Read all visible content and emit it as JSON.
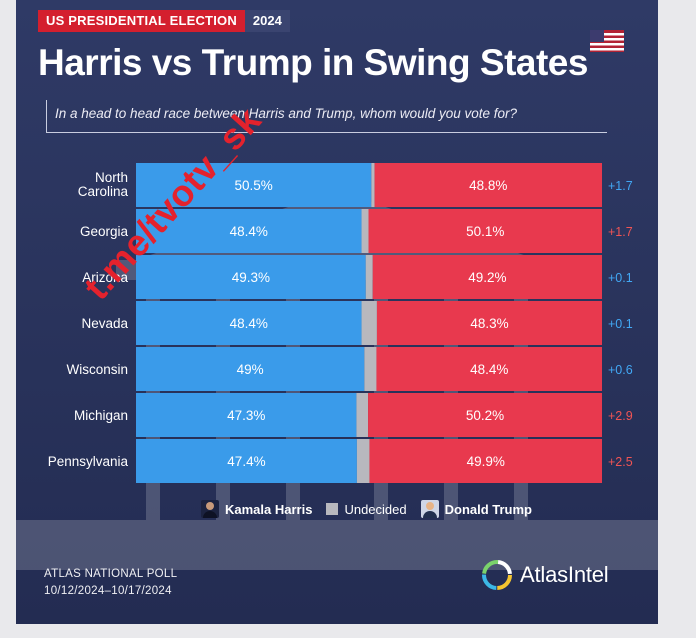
{
  "header": {
    "tag_label": "US PRESIDENTIAL ELECTION",
    "tag_year": "2024"
  },
  "title": "Harris vs Trump in Swing States",
  "subtitle": "In a head to head race between Harris and Trump, whom would you vote for?",
  "colors": {
    "harris": "#3a9bea",
    "trump": "#e8394e",
    "undecided": "#b8b8be",
    "margin_blue": "#42a8f5",
    "margin_red": "#f05454"
  },
  "chart_data": {
    "type": "bar",
    "orientation": "horizontal-stacked",
    "title": "Harris vs Trump in Swing States",
    "categories": [
      "North Carolina",
      "Georgia",
      "Arizona",
      "Nevada",
      "Wisconsin",
      "Michigan",
      "Pennsylvania"
    ],
    "series": [
      {
        "name": "Kamala Harris",
        "values": [
          50.5,
          48.4,
          49.3,
          48.4,
          49,
          47.3,
          47.4
        ],
        "labels": [
          "50.5%",
          "48.4%",
          "49.3%",
          "48.4%",
          "49%",
          "47.3%",
          "47.4%"
        ]
      },
      {
        "name": "Undecided",
        "values": [
          0.7,
          1.5,
          1.5,
          3.3,
          2.6,
          2.5,
          2.7
        ]
      },
      {
        "name": "Donald Trump",
        "values": [
          48.8,
          50.1,
          49.2,
          48.3,
          48.4,
          50.2,
          49.9
        ],
        "labels": [
          "48.8%",
          "50.1%",
          "49.2%",
          "48.3%",
          "48.4%",
          "50.2%",
          "49.9%"
        ]
      }
    ],
    "margins": [
      {
        "text": "+1.7",
        "leader": "harris"
      },
      {
        "text": "+1.7",
        "leader": "trump"
      },
      {
        "text": "+0.1",
        "leader": "harris"
      },
      {
        "text": "+0.1",
        "leader": "harris"
      },
      {
        "text": "+0.6",
        "leader": "harris"
      },
      {
        "text": "+2.9",
        "leader": "trump"
      },
      {
        "text": "+2.5",
        "leader": "trump"
      }
    ],
    "xlim": [
      0,
      100
    ]
  },
  "legend": {
    "harris": "Kamala Harris",
    "undecided": "Undecided",
    "trump": "Donald Trump"
  },
  "source": {
    "line1": "ATLAS NATIONAL POLL",
    "line2": "10/12/2024–10/17/2024"
  },
  "logo": {
    "text": "AtlasIntel",
    "icon": "atlasintel-logo-icon"
  },
  "watermark": "t.me/tvotv_sk",
  "flag_icon": "us-flag-icon"
}
